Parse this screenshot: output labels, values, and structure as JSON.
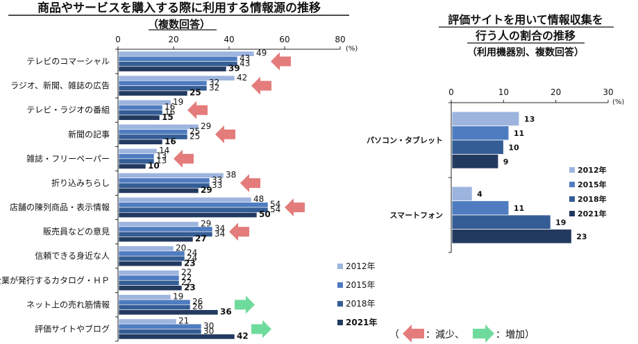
{
  "colors": {
    "s2012": "#9db5de",
    "s2015": "#4f7cc0",
    "s2018": "#355d95",
    "s2021": "#233a60",
    "decrease": "#e47c7c",
    "increase": "#6edb9c"
  },
  "chart_data": [
    {
      "type": "bar",
      "orientation": "horizontal",
      "title": "商品やサービスを購入する際に利用する情報源の推移",
      "subtitle": "（複数回答）",
      "unit": "(%)",
      "xlim": [
        0,
        80
      ],
      "ticks": [
        0,
        20,
        40,
        60,
        80
      ],
      "categories": [
        "テレビのコマーシャル",
        "ラジオ、新聞、雑誌の広告",
        "テレビ・ラジオの番組",
        "新聞の記事",
        "雑誌・フリーペーパー",
        "折り込みちらし",
        "店舗の陳列商品・表示情報",
        "販売員などの意見",
        "信頼できる身近な人",
        "企業が発行するカタログ・ＨＰ",
        "ネット上の売れ筋情報",
        "評価サイトやブログ"
      ],
      "series": [
        {
          "name": "2012年",
          "values": [
            49,
            42,
            19,
            29,
            14,
            38,
            48,
            29,
            20,
            22,
            19,
            21
          ]
        },
        {
          "name": "2015年",
          "values": [
            43,
            32,
            16,
            25,
            13,
            33,
            54,
            34,
            24,
            22,
            26,
            30
          ]
        },
        {
          "name": "2018年",
          "values": [
            43,
            32,
            16,
            25,
            13,
            33,
            54,
            34,
            24,
            22,
            26,
            30
          ]
        },
        {
          "name": "2021年",
          "values": [
            39,
            25,
            15,
            16,
            10,
            29,
            50,
            27,
            23,
            23,
            36,
            42
          ]
        }
      ],
      "trend": [
        "decrease",
        "decrease",
        "decrease",
        "decrease",
        "decrease",
        "decrease",
        "decrease",
        "decrease",
        "none",
        "none",
        "increase",
        "increase"
      ],
      "legend_position": "bottom-right"
    },
    {
      "type": "bar",
      "orientation": "horizontal",
      "title": "評価サイトを用いて情報収集を行う人の割合の推移",
      "subtitle": "（利用機器別、複数回答）",
      "unit": "(%)",
      "xlim": [
        0,
        30
      ],
      "ticks": [
        0,
        10,
        20,
        30
      ],
      "categories": [
        "パソコン・タブレット",
        "スマートフォン"
      ],
      "series": [
        {
          "name": "2012年",
          "values": [
            13,
            4
          ]
        },
        {
          "name": "2015年",
          "values": [
            11,
            11
          ]
        },
        {
          "name": "2018年",
          "values": [
            10,
            19
          ]
        },
        {
          "name": "2021年",
          "values": [
            9,
            23
          ]
        }
      ],
      "legend_position": "right"
    }
  ],
  "left": {
    "title_line1": "商品やサービスを購入する際に利用する情報源の推移",
    "title_line2": "（複数回答）"
  },
  "right": {
    "title_line1": "評価サイトを用いて情報収集を",
    "title_line2": "行う人の割合の推移",
    "title_line3": "（利用機器別、複数回答）"
  },
  "note": {
    "open": "（",
    "decrease_label": "：減少、",
    "increase_label": "：増加）"
  }
}
